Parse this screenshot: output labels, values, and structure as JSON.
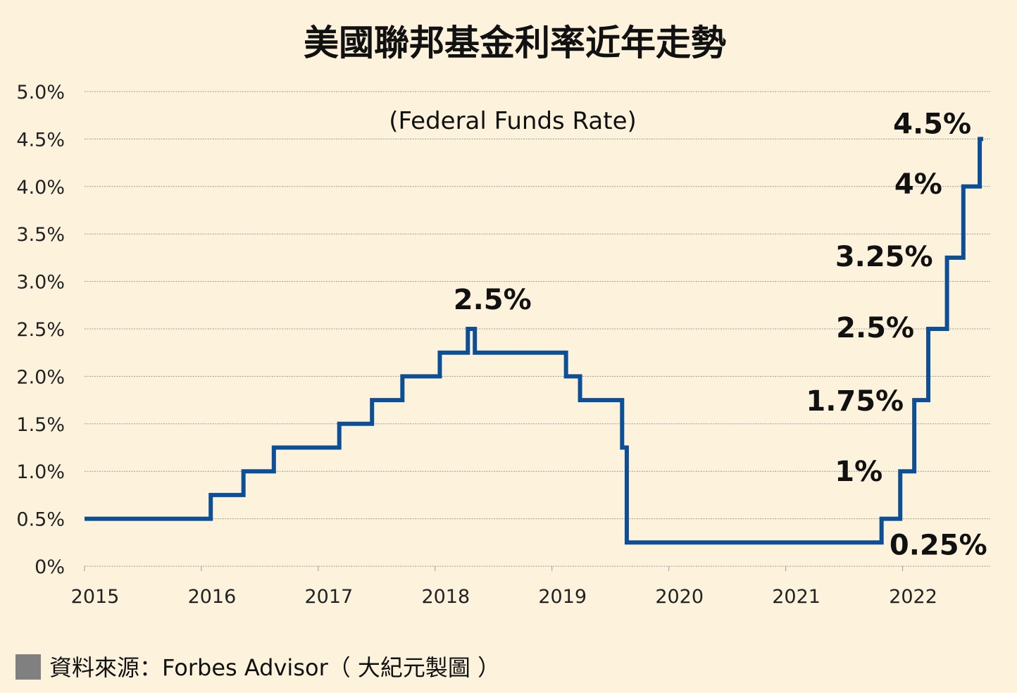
{
  "chart_data": {
    "type": "line",
    "step": true,
    "title": "美國聯邦基金利率近年走勢",
    "subtitle": "(Federal Funds Rate)",
    "xlabel": "",
    "ylabel": "",
    "ylim": [
      0,
      5.0
    ],
    "xlim": [
      2015,
      2022.75
    ],
    "grid": true,
    "y_ticks": [
      {
        "value": 0,
        "label": "0%"
      },
      {
        "value": 0.5,
        "label": "0.5%"
      },
      {
        "value": 1.0,
        "label": "1.0%"
      },
      {
        "value": 1.5,
        "label": "1.5%"
      },
      {
        "value": 2.0,
        "label": "2.0%"
      },
      {
        "value": 2.5,
        "label": "2.5%"
      },
      {
        "value": 3.0,
        "label": "3.0%"
      },
      {
        "value": 3.5,
        "label": "3.5%"
      },
      {
        "value": 4.0,
        "label": "4.0%"
      },
      {
        "value": 4.5,
        "label": "4.5%"
      },
      {
        "value": 5.0,
        "label": "5.0%"
      }
    ],
    "x_ticks": [
      {
        "value": 2015,
        "label": "2015"
      },
      {
        "value": 2016,
        "label": "2016"
      },
      {
        "value": 2017,
        "label": "2017"
      },
      {
        "value": 2018,
        "label": "2018"
      },
      {
        "value": 2019,
        "label": "2019"
      },
      {
        "value": 2020,
        "label": "2020"
      },
      {
        "value": 2021,
        "label": "2021"
      },
      {
        "value": 2022,
        "label": "2022"
      }
    ],
    "series": [
      {
        "name": "Federal Funds Rate",
        "color": "#0d4f96",
        "steps": [
          {
            "x": 2015.0,
            "y": 0.5
          },
          {
            "x": 2016.08,
            "y": 0.75
          },
          {
            "x": 2016.36,
            "y": 1.0
          },
          {
            "x": 2016.62,
            "y": 1.25
          },
          {
            "x": 2017.18,
            "y": 1.5
          },
          {
            "x": 2017.46,
            "y": 1.75
          },
          {
            "x": 2017.72,
            "y": 2.0
          },
          {
            "x": 2018.04,
            "y": 2.25
          },
          {
            "x": 2018.28,
            "y": 2.5
          },
          {
            "x": 2018.34,
            "y": 2.25
          },
          {
            "x": 2019.12,
            "y": 2.0
          },
          {
            "x": 2019.24,
            "y": 1.75
          },
          {
            "x": 2019.6,
            "y": 1.25
          },
          {
            "x": 2019.64,
            "y": 0.25
          },
          {
            "x": 2021.82,
            "y": 0.5
          },
          {
            "x": 2021.98,
            "y": 1.0
          },
          {
            "x": 2022.1,
            "y": 1.75
          },
          {
            "x": 2022.22,
            "y": 2.5
          },
          {
            "x": 2022.38,
            "y": 3.25
          },
          {
            "x": 2022.52,
            "y": 4.0
          },
          {
            "x": 2022.66,
            "y": 4.5
          }
        ],
        "end_x": 2022.69
      }
    ],
    "annotations": [
      {
        "text": "2.5%",
        "x": 2018.31,
        "y": 2.5
      },
      {
        "text": "4.5%",
        "x": 2022.66,
        "y": 4.5
      },
      {
        "text": "4%",
        "x": 2022.52,
        "y": 4.0
      },
      {
        "text": "3.25%",
        "x": 2022.38,
        "y": 3.25
      },
      {
        "text": "2.5%",
        "x": 2022.22,
        "y": 2.5
      },
      {
        "text": "1.75%",
        "x": 2022.1,
        "y": 1.75
      },
      {
        "text": "1%",
        "x": 2021.98,
        "y": 1.0
      },
      {
        "text": "0.25%",
        "x": 2021.82,
        "y": 0.25
      }
    ]
  },
  "source": {
    "label": "資料來源：Forbes Advisor（ 大紀元製圖 ）",
    "swatch_color": "#808080"
  },
  "colors": {
    "background": "#fdf3dd",
    "line": "#0d4f96",
    "text": "#111111"
  }
}
